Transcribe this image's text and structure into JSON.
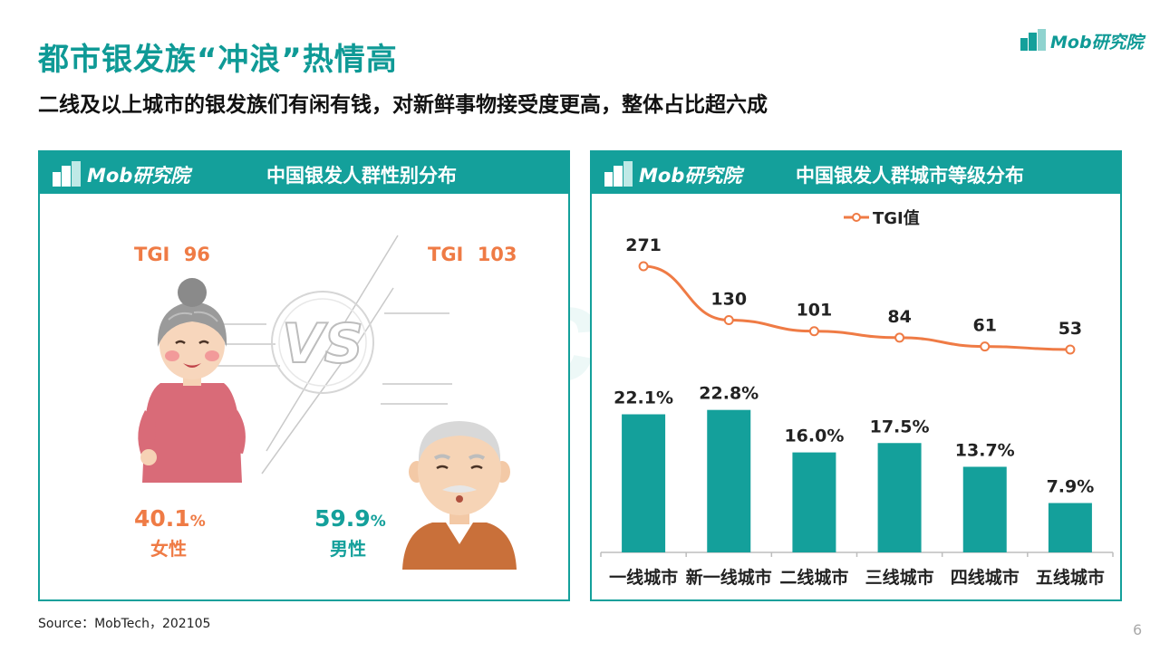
{
  "header": {
    "title": "都市银发族“冲浪”热情高",
    "subtitle": "二线及以上城市的银发族们有闲有钱，对新鲜事物接受度更高，整体占比超六成"
  },
  "brand": {
    "name": "Mob研究院"
  },
  "watermark": {
    "text": "MobTech袤博"
  },
  "colors": {
    "teal": "#14a09b",
    "orange": "#ef7b45"
  },
  "left_panel": {
    "logo": "Mob研究院",
    "title": "中国银发人群性别分布",
    "vs_label": "VS",
    "female": {
      "tgi_label": "TGI",
      "tgi_value": "96",
      "percent": "40.1",
      "unit": "%",
      "label": "女性"
    },
    "male": {
      "tgi_label": "TGI",
      "tgi_value": "103",
      "percent": "59.9",
      "unit": "%",
      "label": "男性"
    }
  },
  "right_panel": {
    "logo": "Mob研究院",
    "title": "中国银发人群城市等级分布"
  },
  "chart_data": [
    {
      "type": "pie",
      "title": "中国银发人群性别分布",
      "categories": [
        "女性",
        "男性"
      ],
      "values": [
        40.1,
        59.9
      ],
      "unit": "%",
      "tgi": [
        96,
        103
      ]
    },
    {
      "type": "bar",
      "title": "中国银发人群城市等级分布",
      "categories": [
        "一线城市",
        "新一线城市",
        "二线城市",
        "三线城市",
        "四线城市",
        "五线城市"
      ],
      "series": [
        {
          "type": "bar",
          "values": [
            22.1,
            22.8,
            16.0,
            17.5,
            13.7,
            7.9
          ],
          "labels": [
            "22.1%",
            "22.8%",
            "16.0%",
            "17.5%",
            "13.7%",
            "7.9%"
          ],
          "color": "#14a09b"
        },
        {
          "type": "line",
          "name": "TGI值",
          "values": [
            271,
            130,
            101,
            84,
            61,
            53
          ],
          "color": "#ef7b45"
        }
      ],
      "legend": "top-center",
      "grid": false
    }
  ],
  "footer": {
    "source": "Source：MobTech，202105",
    "page": "6"
  }
}
